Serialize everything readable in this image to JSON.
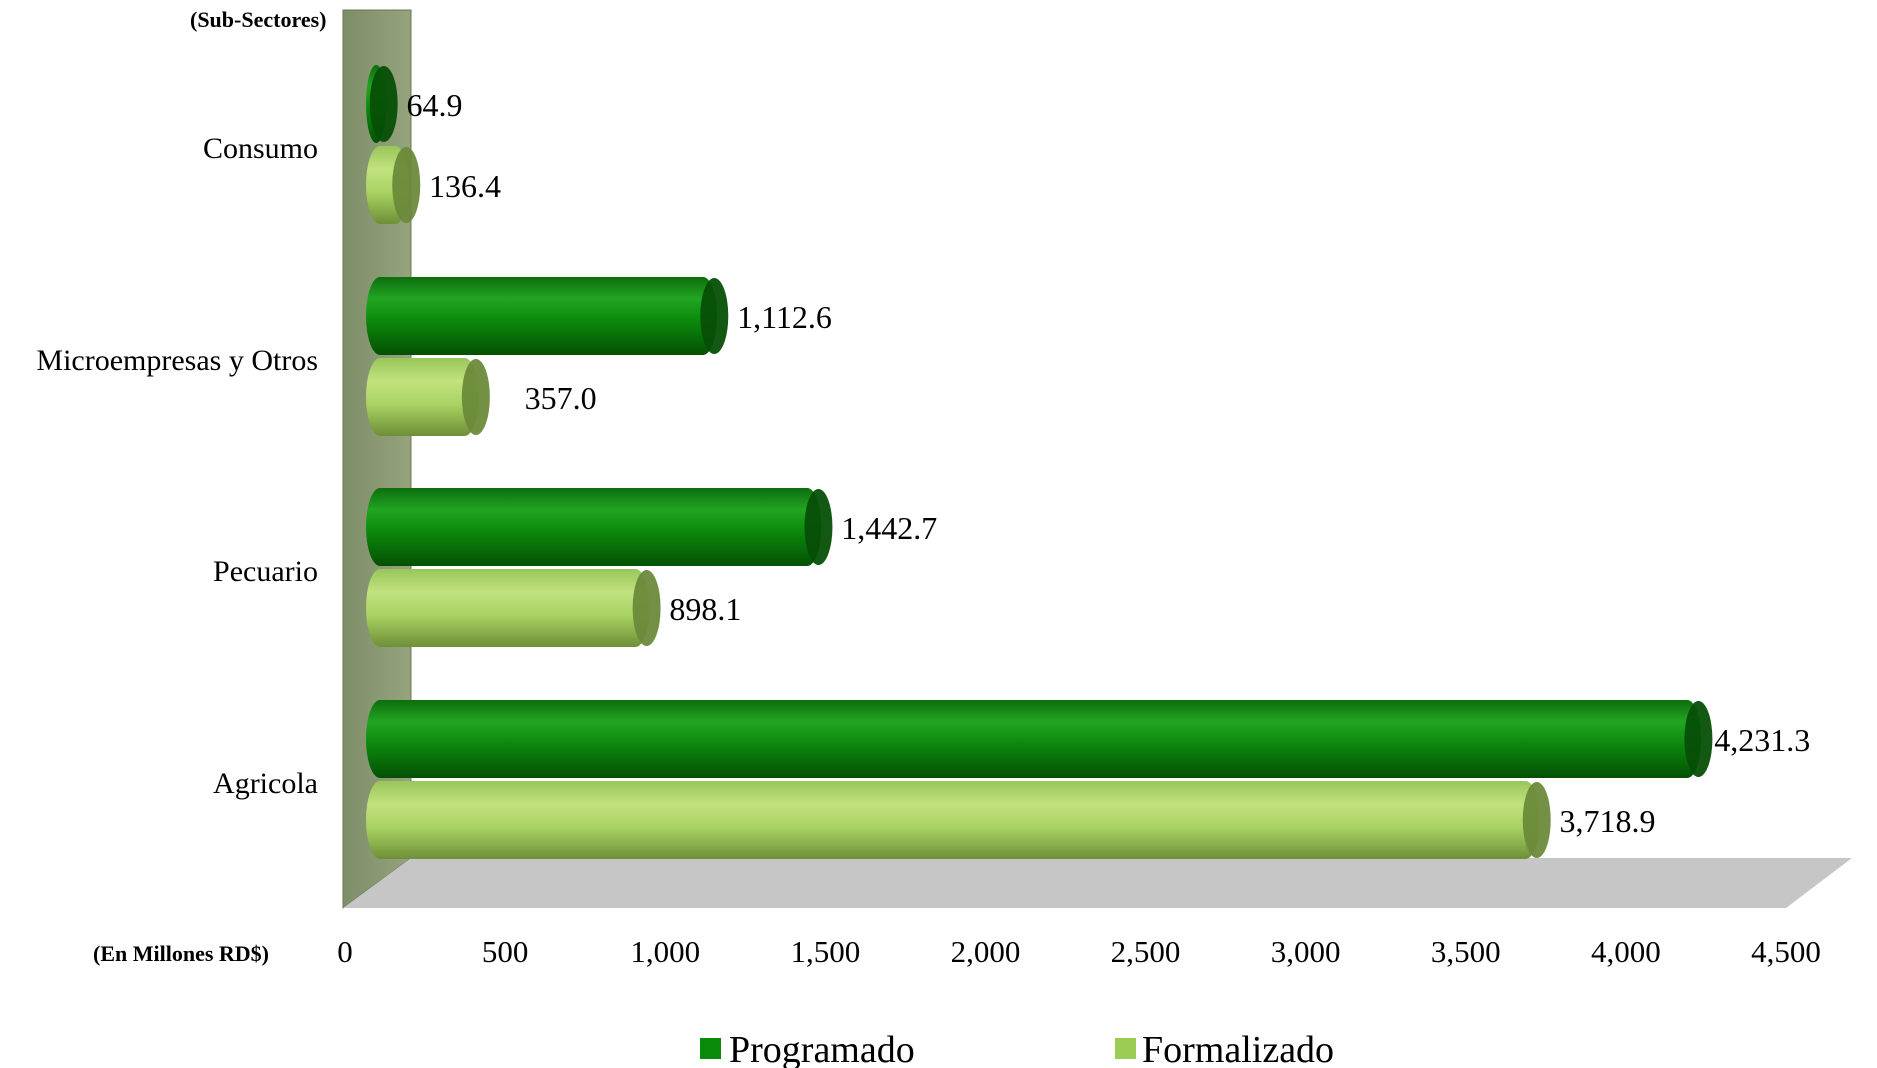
{
  "chart_data": {
    "type": "bar",
    "orientation": "horizontal",
    "style": "3d-cylinder",
    "y_axis_title": "(Sub-Sectores)",
    "x_axis_title": "(En Millones RD$)",
    "categories": [
      "Consumo",
      "Microempresas y Otros",
      "Pecuario",
      "Agricola"
    ],
    "series": [
      {
        "name": "Programado",
        "color": "#0a8a0a",
        "values": [
          64.9,
          1112.6,
          1442.7,
          4231.3
        ],
        "labels": [
          "64.9",
          "1,112.6",
          "1,442.7",
          "4,231.3"
        ]
      },
      {
        "name": "Formalizado",
        "color": "#9dcc55",
        "values": [
          136.4,
          357.0,
          898.1,
          3718.9
        ],
        "labels": [
          "136.4",
          "357.0",
          "898.1",
          "3,718.9"
        ]
      }
    ],
    "xlim": [
      0,
      4500
    ],
    "x_ticks": [
      0,
      500,
      1000,
      1500,
      2000,
      2500,
      3000,
      3500,
      4000,
      4500
    ],
    "x_tick_labels": [
      "0",
      "500",
      "1,000",
      "1,500",
      "2,000",
      "2,500",
      "3,000",
      "3,500",
      "4,000",
      "4,500"
    ],
    "legend_position": "bottom",
    "grid": false,
    "wall_color": "#8a9a72",
    "floor_color": "#c4c4c4"
  }
}
